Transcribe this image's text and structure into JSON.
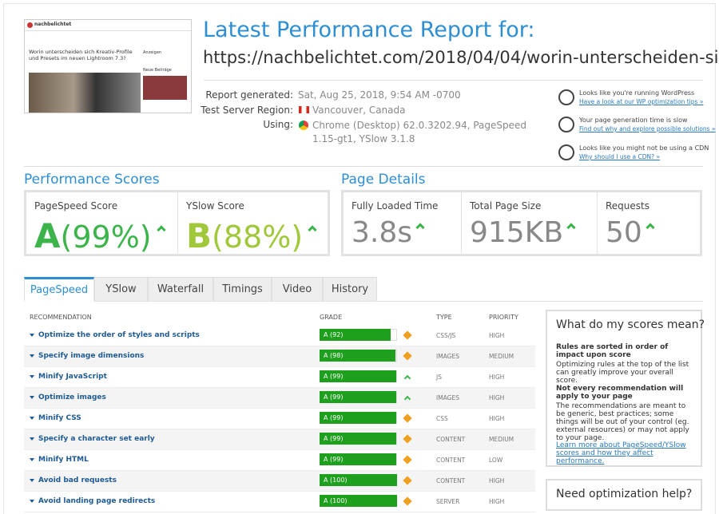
{
  "header": {
    "thumbnail": {
      "site": "nachbelichtet",
      "headline": "Worin unterscheiden sich Kreativ-Profile und Presets im neuen Lightroom 7.3?",
      "sidebar_1": "Anzeigen",
      "sidebar_2": "Neue Beiträge"
    },
    "title": "Latest Performance Report for:",
    "url": "https://nachbelichtet.com/2018/04/04/worin-unterscheiden-si…",
    "details": [
      {
        "label": "Report generated:",
        "value": "Sat, Aug 25, 2018, 9:54 AM -0700"
      },
      {
        "label": "Test Server Region:",
        "value": "Vancouver, Canada"
      },
      {
        "label": "Using:",
        "value": "Chrome (Desktop) 62.0.3202.94, PageSpeed 1.15-gt1, YSlow 3.1.8"
      }
    ],
    "tips": [
      {
        "text": "Looks like you're running WordPress",
        "link": "Have a look at our WP optimization tips »"
      },
      {
        "text": "Your page generation time is slow",
        "link": "Find out why and explore possible solutions »"
      },
      {
        "text": "Looks like you might not be using a CDN",
        "link": "Why should I use a CDN? »"
      }
    ]
  },
  "performance_scores": {
    "title": "Performance Scores",
    "items": [
      {
        "label": "PageSpeed Score",
        "grade": "A",
        "value": "(99%)"
      },
      {
        "label": "YSlow Score",
        "grade": "B",
        "value": "(88%)"
      }
    ]
  },
  "page_details": {
    "title": "Page Details",
    "items": [
      {
        "label": "Fully Loaded Time",
        "value": "3.8s"
      },
      {
        "label": "Total Page Size",
        "value": "915KB"
      },
      {
        "label": "Requests",
        "value": 50
      }
    ]
  },
  "tabs": [
    "PageSpeed",
    "YSlow",
    "Waterfall",
    "Timings",
    "Video",
    "History"
  ],
  "table": {
    "headers": [
      "RECOMMENDATION",
      "GRADE",
      "TYPE",
      "PRIORITY"
    ],
    "rows": [
      {
        "name": "Optimize the order of styles and scripts",
        "score": 92,
        "grade_label": "A (92)",
        "type": "CSS/JS",
        "priority": "HIGH",
        "trend": "same"
      },
      {
        "name": "Specify image dimensions",
        "score": 98,
        "grade_label": "A (98)",
        "type": "IMAGES",
        "priority": "MEDIUM",
        "trend": "same"
      },
      {
        "name": "Minify JavaScript",
        "score": 99,
        "grade_label": "A (99)",
        "type": "JS",
        "priority": "HIGH",
        "trend": "up"
      },
      {
        "name": "Optimize images",
        "score": 99,
        "grade_label": "A (99)",
        "type": "IMAGES",
        "priority": "HIGH",
        "trend": "up"
      },
      {
        "name": "Minify CSS",
        "score": 99,
        "grade_label": "A (99)",
        "type": "CSS",
        "priority": "HIGH",
        "trend": "same"
      },
      {
        "name": "Specify a character set early",
        "score": 99,
        "grade_label": "A (99)",
        "type": "CONTENT",
        "priority": "MEDIUM",
        "trend": "same"
      },
      {
        "name": "Minify HTML",
        "score": 99,
        "grade_label": "A (99)",
        "type": "CONTENT",
        "priority": "LOW",
        "trend": "same"
      },
      {
        "name": "Avoid bad requests",
        "score": 100,
        "grade_label": "A (100)",
        "type": "CONTENT",
        "priority": "HIGH",
        "trend": "same"
      },
      {
        "name": "Avoid landing page redirects",
        "score": 100,
        "grade_label": "A (100)",
        "type": "SERVER",
        "priority": "HIGH",
        "trend": "same"
      }
    ]
  },
  "sidebar": {
    "title": "What do my scores mean?",
    "heading_1": "Rules are sorted in order of impact upon score",
    "text_1": "Optimizing rules at the top of the list can greatly improve your overall score.",
    "heading_2": "Not every recommendation will apply to your page",
    "text_2": "The recommendations are meant to be generic, best practices; some things will be out of your control (eg. external resources) or may not apply to your page.",
    "link": "Learn more about PageSpeed/YSlow scores and how they affect performance.",
    "help_title": "Need optimization help?"
  }
}
